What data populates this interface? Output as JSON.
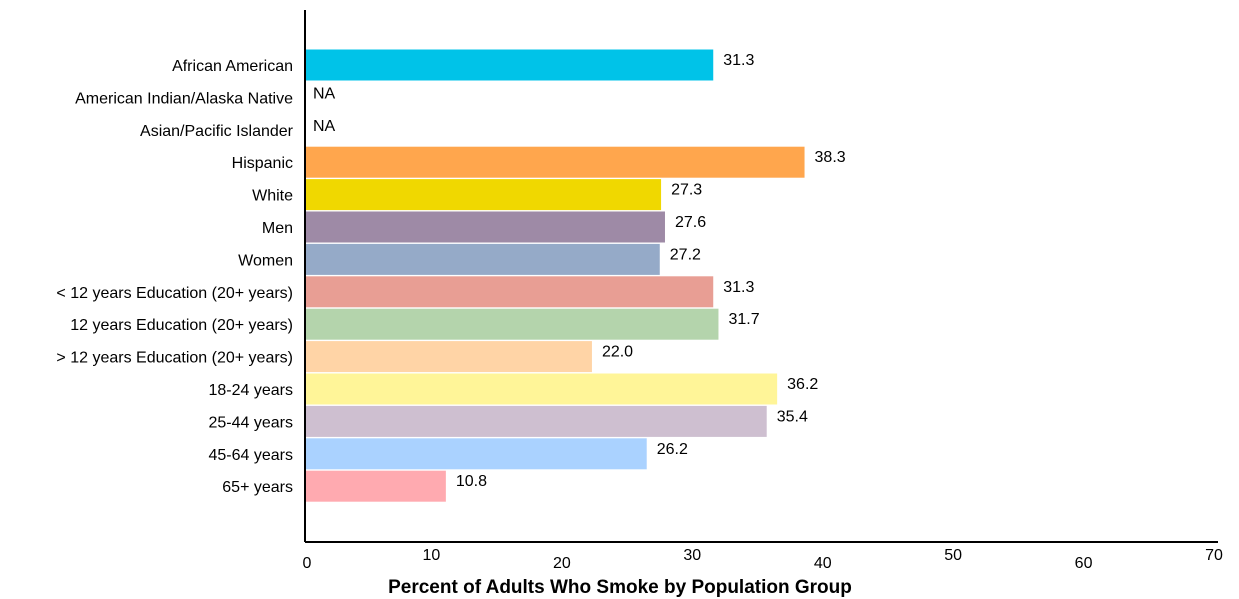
{
  "chart_data": {
    "type": "bar",
    "orientation": "horizontal",
    "xlabel": "Percent of Adults Who Smoke by Population Group",
    "xlim": [
      0,
      70
    ],
    "xticks": [
      "0",
      "10",
      "20",
      "30",
      "40",
      "50",
      "60",
      "70"
    ],
    "grid": false,
    "categories": [
      "African American",
      "American Indian/Alaska Native",
      "Asian/Pacific Islander",
      "Hispanic",
      "White",
      "Men",
      "Women",
      "< 12 years Education (20+ years)",
      "12 years Education (20+ years)",
      "> 12 years Education (20+ years)",
      "18-24 years",
      "25-44 years",
      "45-64 years",
      "65+ years"
    ],
    "values": [
      31.3,
      null,
      null,
      38.3,
      27.3,
      27.6,
      27.2,
      31.3,
      31.7,
      22.0,
      36.2,
      35.4,
      26.2,
      10.8
    ],
    "value_labels": [
      "31.3",
      "NA",
      "NA",
      "38.3",
      "27.3",
      "27.6",
      "27.2",
      "31.3",
      "31.7",
      "22.0",
      "36.2",
      "35.4",
      "26.2",
      "10.8"
    ],
    "colors": [
      "#00c3e8",
      null,
      null,
      "#ffa64d",
      "#f0d800",
      "#9e8aa6",
      "#95aac8",
      "#e89e94",
      "#b4d4ac",
      "#ffd4a6",
      "#fff598",
      "#cebfd0",
      "#aad2ff",
      "#ffaab0"
    ]
  }
}
